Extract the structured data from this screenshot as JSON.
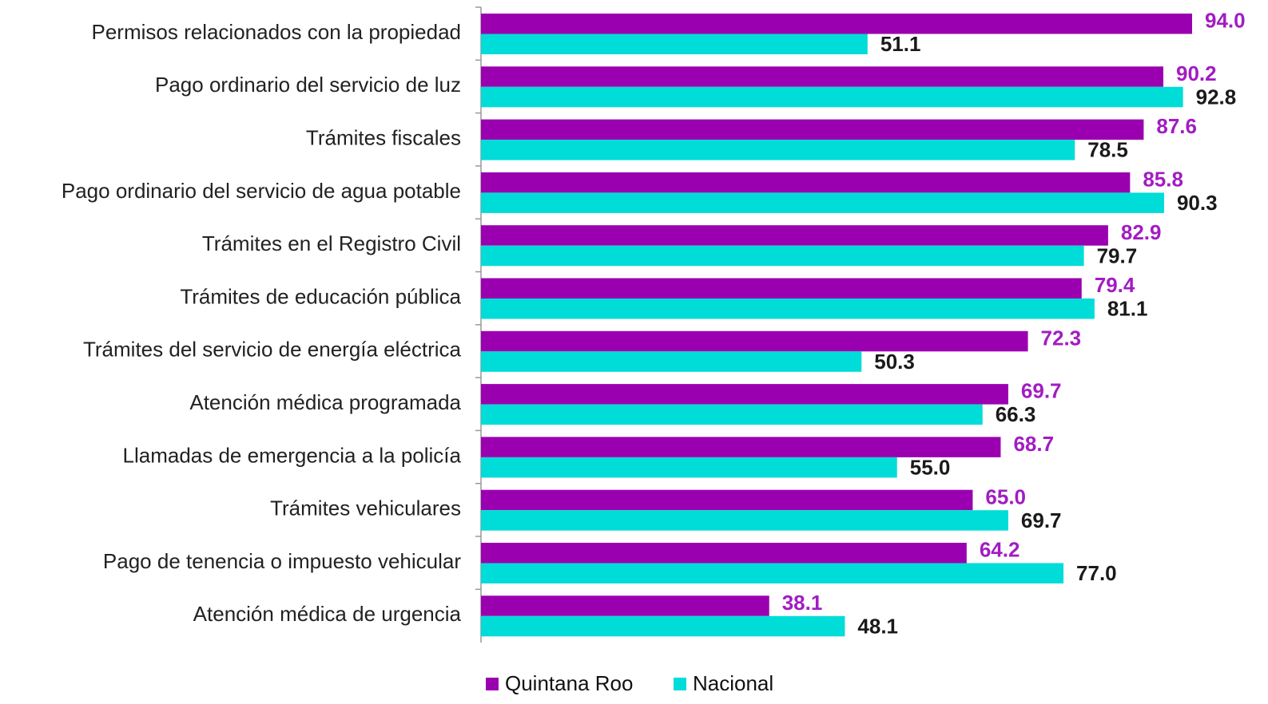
{
  "chart_data": {
    "type": "hbar",
    "categories": [
      "Permisos relacionados con la propiedad",
      "Pago ordinario del servicio de luz",
      "Trámites fiscales",
      "Pago ordinario del servicio de agua potable",
      "Trámites en el Registro Civil",
      "Trámites de educación pública",
      "Trámites del servicio de energía eléctrica",
      "Atención médica programada",
      "Llamadas de emergencia a la policía",
      "Trámites vehiculares",
      "Pago de tenencia o impuesto vehicular",
      "Atención médica de urgencia"
    ],
    "series": [
      {
        "name": "Quintana Roo",
        "color": "#9b00b0",
        "label_color": "#a21cc2",
        "values": [
          94.0,
          90.2,
          87.6,
          85.8,
          82.9,
          79.4,
          72.3,
          69.7,
          68.7,
          65.0,
          64.2,
          38.1
        ],
        "value_labels": [
          "94.0",
          "90.2",
          "87.6",
          "85.8",
          "82.9",
          "79.4",
          "72.3",
          "69.7",
          "68.7",
          "65.0",
          "64.2",
          "38.1"
        ]
      },
      {
        "name": "Nacional",
        "color": "#00dcd8",
        "label_color": "#1a1a1a",
        "values": [
          51.1,
          92.8,
          78.5,
          90.3,
          79.7,
          81.1,
          50.3,
          66.3,
          55.0,
          69.7,
          77.0,
          48.1
        ],
        "value_labels": [
          "51.1",
          "92.8",
          "78.5",
          "90.3",
          "79.7",
          "81.1",
          "50.3",
          "66.3",
          "55.0",
          "69.7",
          "77.0",
          "48.1"
        ]
      }
    ],
    "xlim": [
      0,
      100
    ]
  }
}
